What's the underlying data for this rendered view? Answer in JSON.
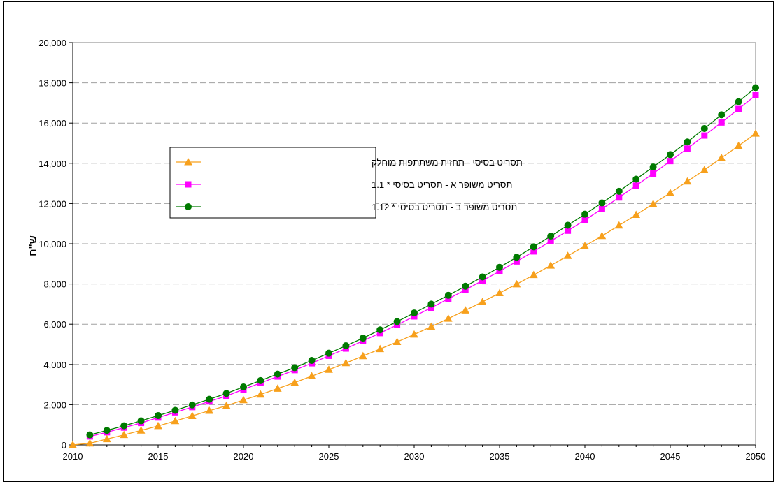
{
  "chart_data": {
    "type": "line",
    "title": "",
    "xlabel": "",
    "ylabel": "ש\"ח",
    "xlim": [
      2010,
      2050
    ],
    "ylim": [
      0,
      20000
    ],
    "xticks": [
      2010,
      2015,
      2020,
      2025,
      2030,
      2035,
      2040,
      2045,
      2050
    ],
    "yticks": [
      0,
      2000,
      4000,
      6000,
      8000,
      10000,
      12000,
      14000,
      16000,
      18000,
      20000
    ],
    "xtick_labels": [
      "2010",
      "2015",
      "2020",
      "2025",
      "2030",
      "2035",
      "2040",
      "2045",
      "2050"
    ],
    "ytick_labels": [
      "0",
      "2,000",
      "4,000",
      "6,000",
      "8,000",
      "10,000",
      "12,000",
      "14,000",
      "16,000",
      "18,000",
      "20,000"
    ],
    "grid": "horizontal dashed",
    "legend_position": "upper-left-inside",
    "x": [
      2010,
      2011,
      2012,
      2013,
      2014,
      2015,
      2016,
      2017,
      2018,
      2019,
      2020,
      2021,
      2022,
      2023,
      2024,
      2025,
      2026,
      2027,
      2028,
      2029,
      2030,
      2031,
      2032,
      2033,
      2034,
      2035,
      2036,
      2037,
      2038,
      2039,
      2040,
      2041,
      2042,
      2043,
      2044,
      2045,
      2046,
      2047,
      2048,
      2049,
      2050
    ],
    "series": [
      {
        "name": "תסריט בסיסי - תחזית משתתפות מוחלק",
        "color": "#f7a01c",
        "marker": "triangle",
        "x": [
          2010,
          2011,
          2012,
          2013,
          2014,
          2015,
          2016,
          2017,
          2018,
          2019,
          2020,
          2021,
          2022,
          2023,
          2024,
          2025,
          2026,
          2027,
          2028,
          2029,
          2030,
          2031,
          2032,
          2033,
          2034,
          2035,
          2036,
          2037,
          2038,
          2039,
          2040,
          2041,
          2042,
          2043,
          2044,
          2045,
          2046,
          2047,
          2048,
          2049,
          2050
        ],
        "values": [
          0,
          80,
          290,
          500,
          720,
          940,
          1190,
          1440,
          1700,
          1950,
          2230,
          2510,
          2800,
          3100,
          3420,
          3740,
          4070,
          4420,
          4770,
          5120,
          5490,
          5880,
          6280,
          6690,
          7110,
          7550,
          7990,
          8450,
          8920,
          9400,
          9890,
          10390,
          10910,
          11440,
          11980,
          12530,
          13100,
          13670,
          14270,
          14870,
          15480
        ]
      },
      {
        "name": "תסריט משופר א - תסריט בסיסי * 1.1",
        "color": "#ff00ff",
        "marker": "square",
        "x": [
          2011,
          2012,
          2013,
          2014,
          2015,
          2016,
          2017,
          2018,
          2019,
          2020,
          2021,
          2022,
          2023,
          2024,
          2025,
          2026,
          2027,
          2028,
          2029,
          2030,
          2031,
          2032,
          2033,
          2034,
          2035,
          2036,
          2037,
          2038,
          2039,
          2040,
          2041,
          2042,
          2043,
          2044,
          2045,
          2046,
          2047,
          2048,
          2049,
          2050
        ],
        "values": [
          420,
          630,
          860,
          1090,
          1360,
          1620,
          1880,
          2160,
          2430,
          2760,
          3080,
          3400,
          3720,
          4060,
          4430,
          4790,
          5170,
          5560,
          5960,
          6390,
          6820,
          7260,
          7710,
          8170,
          8630,
          9120,
          9620,
          10130,
          10650,
          11180,
          11730,
          12300,
          12890,
          13490,
          14110,
          14730,
          15380,
          16030,
          16700,
          17380
        ]
      },
      {
        "name": "תסריט משופר ב - תסריט בסיסי * 1.12",
        "color": "#007a00",
        "marker": "circle",
        "x": [
          2011,
          2012,
          2013,
          2014,
          2015,
          2016,
          2017,
          2018,
          2019,
          2020,
          2021,
          2022,
          2023,
          2024,
          2025,
          2026,
          2027,
          2028,
          2029,
          2030,
          2031,
          2032,
          2033,
          2034,
          2035,
          2036,
          2037,
          2038,
          2039,
          2040,
          2041,
          2042,
          2043,
          2044,
          2045,
          2046,
          2047,
          2048,
          2049,
          2050
        ],
        "values": [
          500,
          720,
          950,
          1200,
          1460,
          1720,
          1990,
          2270,
          2560,
          2880,
          3200,
          3520,
          3840,
          4200,
          4560,
          4930,
          5310,
          5720,
          6130,
          6560,
          7000,
          7440,
          7890,
          8350,
          8830,
          9330,
          9850,
          10380,
          10920,
          11470,
          12030,
          12610,
          13210,
          13820,
          14430,
          15060,
          15730,
          16410,
          17060,
          17760
        ]
      }
    ]
  }
}
